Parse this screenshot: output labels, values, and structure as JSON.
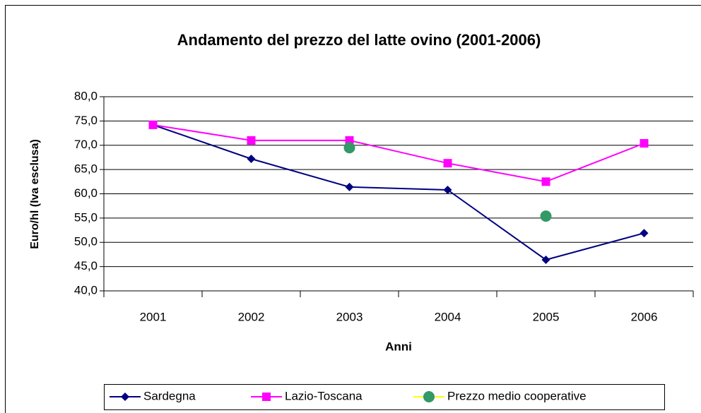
{
  "chart_data": {
    "type": "line",
    "title": "Andamento del prezzo del latte ovino (2001-2006)",
    "x_label": "Anni",
    "y_label": "Euro/hl (Iva esclusa)",
    "categories": [
      "2001",
      "2002",
      "2003",
      "2004",
      "2005",
      "2006"
    ],
    "series": [
      {
        "name": "Sardegna",
        "color": "#000080",
        "marker": "diamond",
        "line": true,
        "values": [
          74.2,
          67.2,
          61.4,
          60.8,
          46.4,
          51.9
        ]
      },
      {
        "name": "Lazio-Toscana",
        "color": "#ff00ff",
        "marker": "square",
        "line": true,
        "values": [
          74.2,
          71.0,
          71.0,
          66.3,
          62.5,
          70.4
        ]
      },
      {
        "name": "Prezzo medio cooperative",
        "color": "#339966",
        "line_color": "#ffff00",
        "marker": "circle",
        "line": false,
        "values": [
          null,
          null,
          69.5,
          null,
          55.4,
          null
        ]
      }
    ],
    "ylim": [
      40,
      80
    ],
    "yticks": [
      {
        "value": 40,
        "label": "40,0"
      },
      {
        "value": 45,
        "label": "45,0"
      },
      {
        "value": 50,
        "label": "50,0"
      },
      {
        "value": 55,
        "label": "55,0"
      },
      {
        "value": 60,
        "label": "60,0"
      },
      {
        "value": 65,
        "label": "65,0"
      },
      {
        "value": 70,
        "label": "70,0"
      },
      {
        "value": 75,
        "label": "75,0"
      },
      {
        "value": 80,
        "label": "80,0"
      }
    ],
    "grid": true,
    "legend": "bottom"
  }
}
